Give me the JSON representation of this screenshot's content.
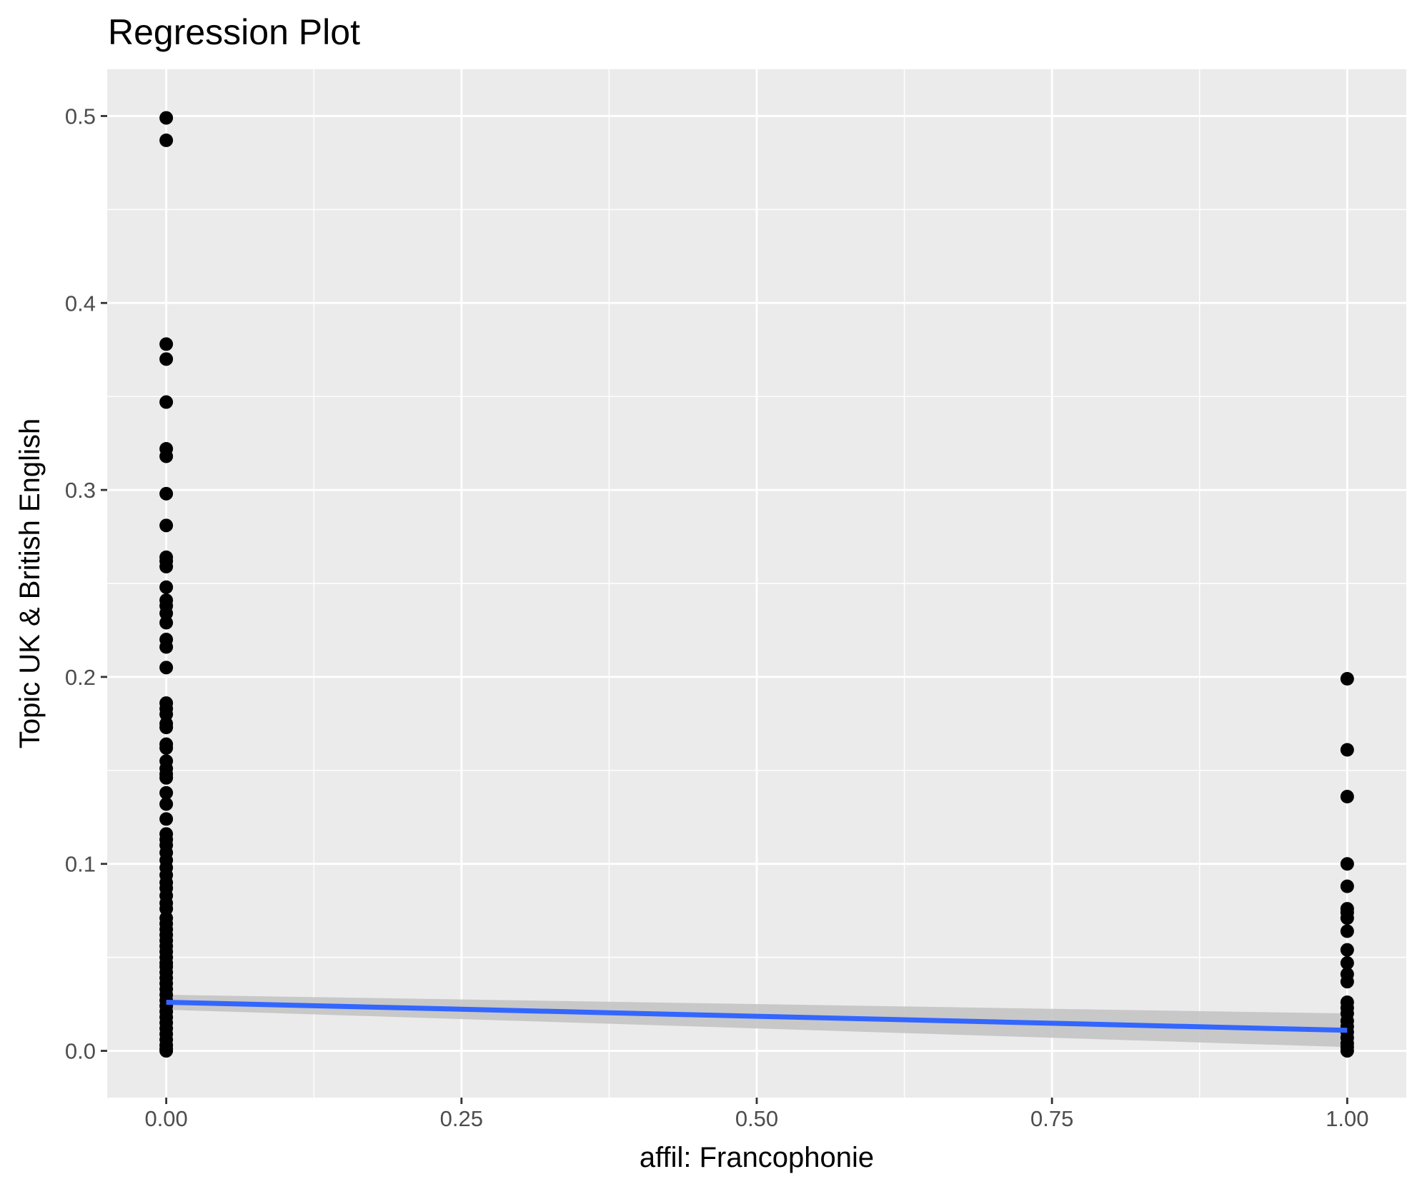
{
  "chart_data": {
    "type": "scatter",
    "title": "Regression Plot",
    "xlabel": "affil: Francophonie",
    "ylabel": "Topic UK & British English",
    "xlim": [
      -0.05,
      1.05
    ],
    "ylim": [
      -0.025,
      0.525
    ],
    "xticks": [
      0.0,
      0.25,
      0.5,
      0.75,
      1.0
    ],
    "xtick_labels": [
      "0.00",
      "0.25",
      "0.50",
      "0.75",
      "1.00"
    ],
    "yticks": [
      0.0,
      0.1,
      0.2,
      0.3,
      0.4,
      0.5
    ],
    "ytick_labels": [
      "0.0",
      "0.1",
      "0.2",
      "0.3",
      "0.4",
      "0.5"
    ],
    "grid": true,
    "legend": "none",
    "series": [
      {
        "type": "scatter",
        "color": "#000000",
        "points": [
          [
            0,
            0.499
          ],
          [
            0,
            0.487
          ],
          [
            0,
            0.378
          ],
          [
            0,
            0.37
          ],
          [
            0,
            0.347
          ],
          [
            0,
            0.322
          ],
          [
            0,
            0.318
          ],
          [
            0,
            0.298
          ],
          [
            0,
            0.281
          ],
          [
            0,
            0.264
          ],
          [
            0,
            0.262
          ],
          [
            0,
            0.259
          ],
          [
            0,
            0.248
          ],
          [
            0,
            0.241
          ],
          [
            0,
            0.238
          ],
          [
            0,
            0.234
          ],
          [
            0,
            0.229
          ],
          [
            0,
            0.22
          ],
          [
            0,
            0.216
          ],
          [
            0,
            0.205
          ],
          [
            0,
            0.186
          ],
          [
            0,
            0.183
          ],
          [
            0,
            0.18
          ],
          [
            0,
            0.175
          ],
          [
            0,
            0.173
          ],
          [
            0,
            0.164
          ],
          [
            0,
            0.162
          ],
          [
            0,
            0.155
          ],
          [
            0,
            0.151
          ],
          [
            0,
            0.148
          ],
          [
            0,
            0.146
          ],
          [
            0,
            0.138
          ],
          [
            0,
            0.132
          ],
          [
            0,
            0.124
          ],
          [
            0,
            0.116
          ],
          [
            0,
            0.113
          ],
          [
            0,
            0.11
          ],
          [
            0,
            0.106
          ],
          [
            0,
            0.102
          ],
          [
            0,
            0.098
          ],
          [
            0,
            0.094
          ],
          [
            0,
            0.09
          ],
          [
            0,
            0.087
          ],
          [
            0,
            0.083
          ],
          [
            0,
            0.079
          ],
          [
            0,
            0.076
          ],
          [
            0,
            0.071
          ],
          [
            0,
            0.068
          ],
          [
            0,
            0.065
          ],
          [
            0,
            0.062
          ],
          [
            0,
            0.059
          ],
          [
            0,
            0.056
          ],
          [
            0,
            0.053
          ],
          [
            0,
            0.05
          ],
          [
            0,
            0.047
          ],
          [
            0,
            0.045
          ],
          [
            0,
            0.042
          ],
          [
            0,
            0.039
          ],
          [
            0,
            0.036
          ],
          [
            0,
            0.033
          ],
          [
            0,
            0.03
          ],
          [
            0,
            0.027
          ],
          [
            0,
            0.024
          ],
          [
            0,
            0.021
          ],
          [
            0,
            0.018
          ],
          [
            0,
            0.015
          ],
          [
            0,
            0.012
          ],
          [
            0,
            0.009
          ],
          [
            0,
            0.006
          ],
          [
            0,
            0.003
          ],
          [
            0,
            0.001
          ],
          [
            0,
            0.0
          ],
          [
            1,
            0.199
          ],
          [
            1,
            0.161
          ],
          [
            1,
            0.136
          ],
          [
            1,
            0.1
          ],
          [
            1,
            0.088
          ],
          [
            1,
            0.076
          ],
          [
            1,
            0.074
          ],
          [
            1,
            0.071
          ],
          [
            1,
            0.064
          ],
          [
            1,
            0.054
          ],
          [
            1,
            0.047
          ],
          [
            1,
            0.041
          ],
          [
            1,
            0.037
          ],
          [
            1,
            0.026
          ],
          [
            1,
            0.023
          ],
          [
            1,
            0.02
          ],
          [
            1,
            0.016
          ],
          [
            1,
            0.013
          ],
          [
            1,
            0.01
          ],
          [
            1,
            0.007
          ],
          [
            1,
            0.004
          ],
          [
            1,
            0.002
          ],
          [
            1,
            0.0
          ]
        ]
      },
      {
        "type": "line",
        "color": "#3366FF",
        "points": [
          [
            0,
            0.026
          ],
          [
            1,
            0.011
          ]
        ],
        "confidence_band": {
          "color": "#c2c2c2",
          "upper": [
            [
              0,
              0.03
            ],
            [
              1,
              0.02
            ]
          ],
          "lower": [
            [
              0,
              0.022
            ],
            [
              1,
              0.002
            ]
          ]
        }
      }
    ]
  }
}
